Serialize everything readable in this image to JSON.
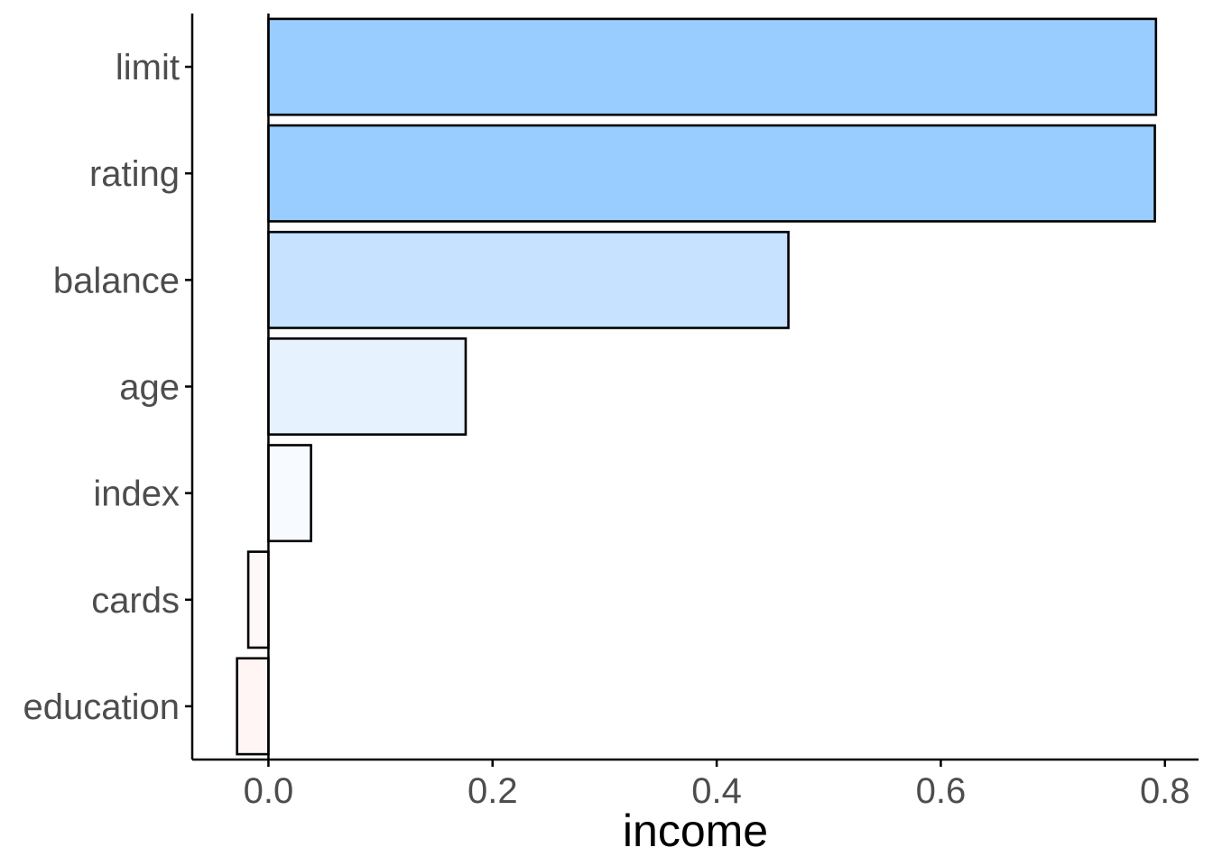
{
  "chart_data": {
    "type": "bar",
    "orientation": "horizontal",
    "categories": [
      "limit",
      "rating",
      "balance",
      "age",
      "index",
      "cards",
      "education"
    ],
    "values": [
      0.792,
      0.791,
      0.464,
      0.176,
      0.038,
      -0.018,
      -0.028
    ],
    "colors": [
      "#99ccff",
      "#99ccff",
      "#c6e2ff",
      "#e6f3ff",
      "#f7faff",
      "#fff8f8",
      "#fff5f5"
    ],
    "xlabel": "income",
    "ylabel": "",
    "title": "",
    "xlim": [
      -0.068,
      0.83
    ],
    "xticks": [
      0.0,
      0.2,
      0.4,
      0.6,
      0.8
    ],
    "xtick_labels": [
      "0.0",
      "0.2",
      "0.4",
      "0.6",
      "0.8"
    ],
    "grid": false,
    "legend": "none"
  }
}
